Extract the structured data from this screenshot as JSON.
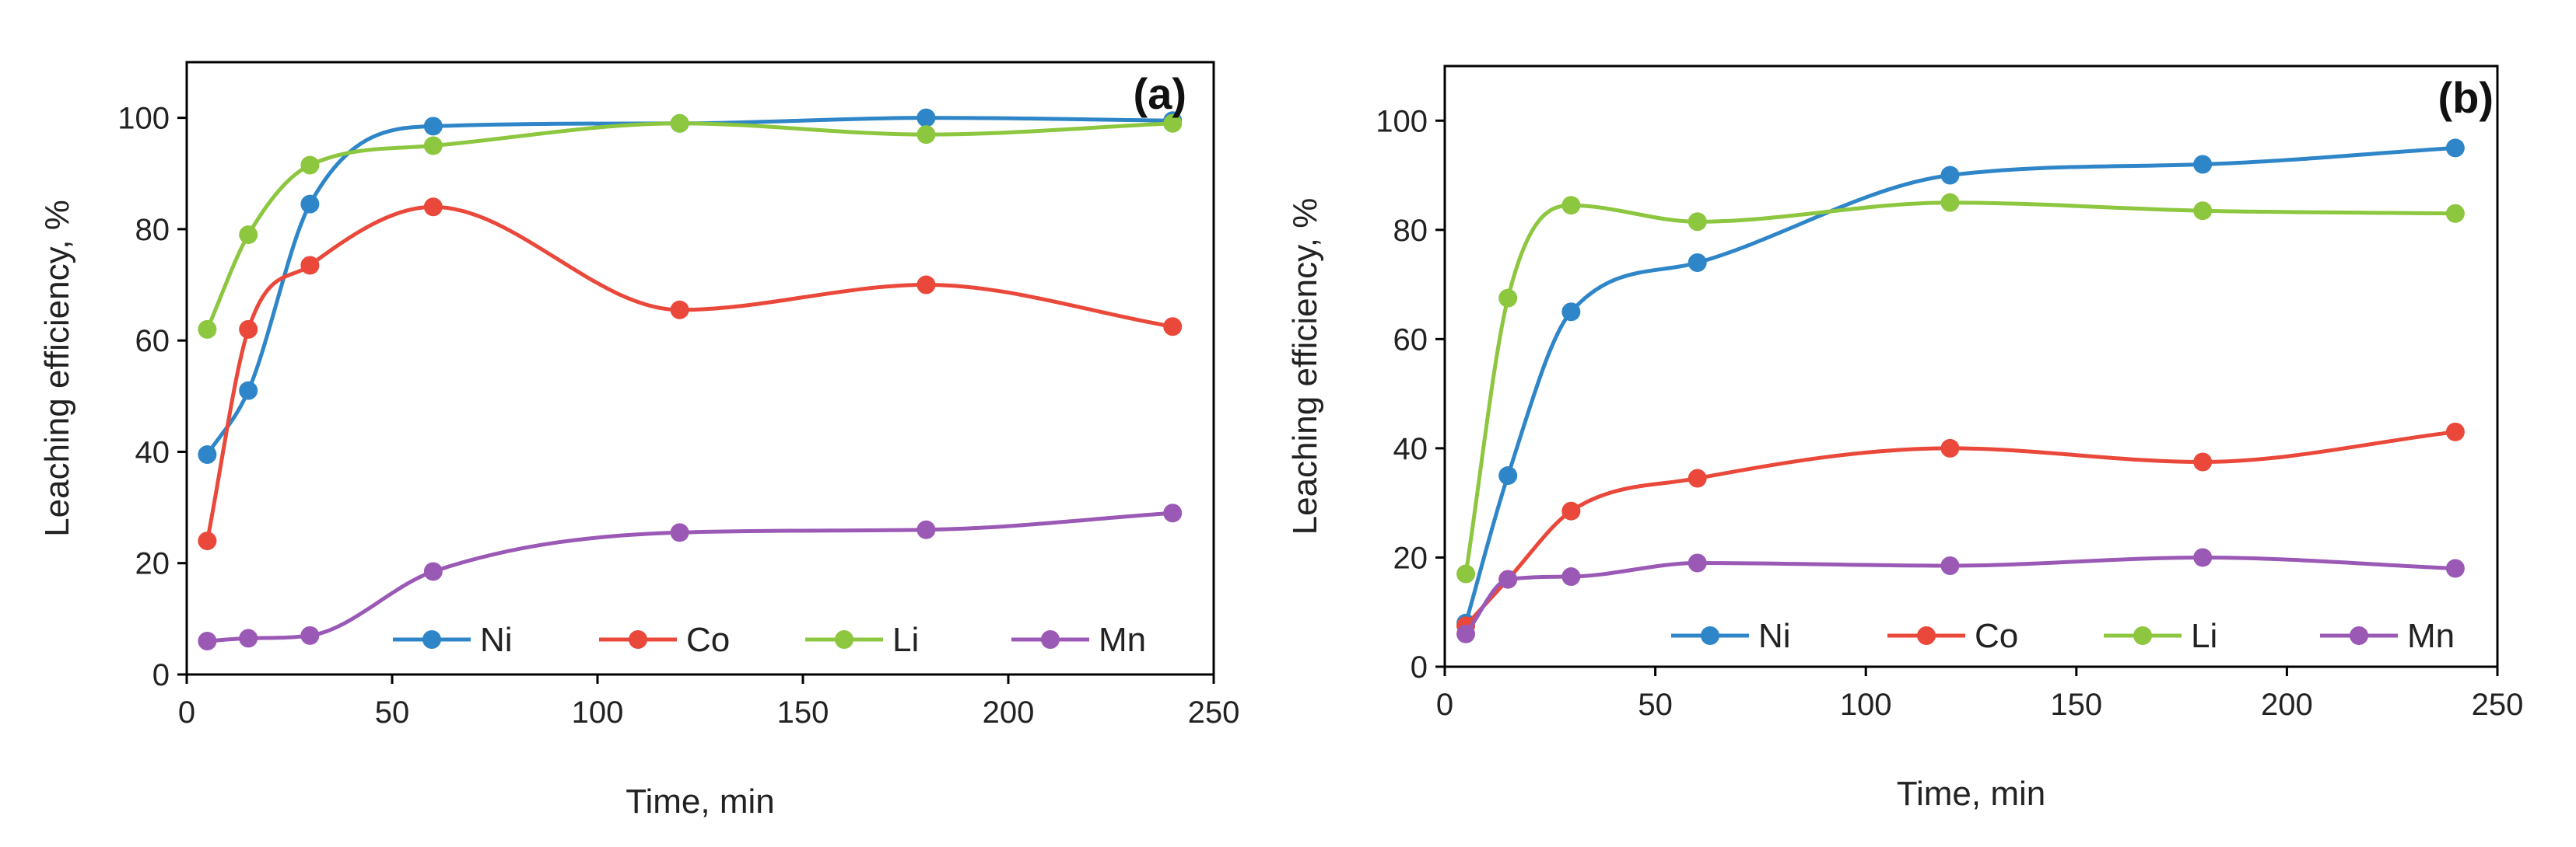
{
  "colors": {
    "Ni": "#2E86C8",
    "Co": "#E9483A",
    "Li": "#8DC63F",
    "Mn": "#9B59B6",
    "axis": "#000000"
  },
  "chart_data": [
    {
      "type": "line",
      "panel_label": "(a)",
      "xlabel": "Time, min",
      "ylabel": "Leaching efficiency, %",
      "xlim": [
        0,
        250
      ],
      "ylim": [
        0,
        110
      ],
      "xticks": [
        0,
        50,
        100,
        150,
        200,
        250
      ],
      "yticks": [
        0,
        20,
        40,
        60,
        80,
        100
      ],
      "legend_position": "bottom-right",
      "x": [
        5,
        15,
        30,
        60,
        120,
        180,
        240
      ],
      "series": [
        {
          "name": "Ni",
          "values": [
            39.5,
            51,
            84.5,
            98.5,
            99,
            100,
            99.5
          ]
        },
        {
          "name": "Co",
          "values": [
            24,
            62,
            73.5,
            84,
            65.5,
            70,
            62.5
          ]
        },
        {
          "name": "Li",
          "values": [
            62,
            79,
            91.5,
            95,
            99,
            97,
            99
          ]
        },
        {
          "name": "Mn",
          "values": [
            6,
            6.5,
            7,
            18.5,
            25.5,
            26,
            29
          ]
        }
      ]
    },
    {
      "type": "line",
      "panel_label": "(b)",
      "xlabel": "Time, min",
      "ylabel": "Leaching efficiency, %",
      "xlim": [
        0,
        250
      ],
      "ylim": [
        0,
        110
      ],
      "xticks": [
        0,
        50,
        100,
        150,
        200,
        250
      ],
      "yticks": [
        0,
        20,
        40,
        60,
        80,
        100
      ],
      "legend_position": "bottom-right",
      "x": [
        5,
        15,
        30,
        60,
        120,
        180,
        240
      ],
      "series": [
        {
          "name": "Ni",
          "values": [
            8,
            35,
            65,
            74,
            90,
            92,
            95
          ]
        },
        {
          "name": "Co",
          "values": [
            7.5,
            16,
            28.5,
            34.5,
            40,
            37.5,
            43
          ]
        },
        {
          "name": "Li",
          "values": [
            17,
            67.5,
            84.5,
            81.5,
            85,
            83.5,
            83
          ]
        },
        {
          "name": "Mn",
          "values": [
            6,
            16,
            16.5,
            19,
            18.5,
            20,
            18
          ]
        }
      ]
    }
  ]
}
